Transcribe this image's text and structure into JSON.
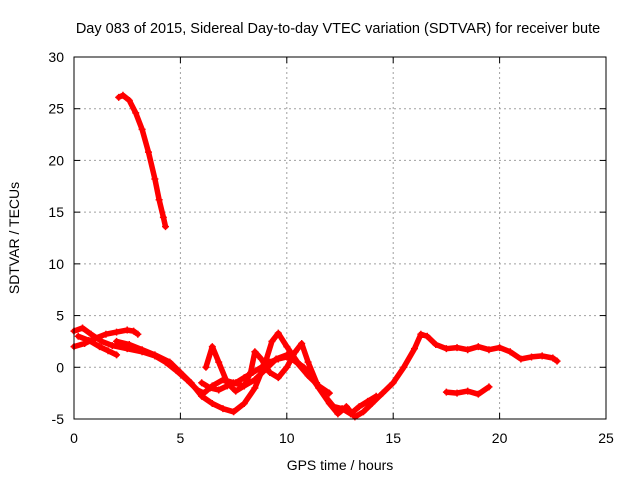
{
  "chart_data": {
    "type": "scatter",
    "title": "Day 083 of 2015, Sidereal Day-to-day VTEC variation (SDTVAR) for receiver bute",
    "xlabel": "GPS time / hours",
    "ylabel": "SDTVAR / TECUs",
    "xlim": [
      0,
      25
    ],
    "ylim": [
      -5,
      30
    ],
    "xticks": [
      "0",
      "5",
      "10",
      "15",
      "20",
      "25"
    ],
    "yticks": [
      "-5",
      "0",
      "5",
      "10",
      "15",
      "20",
      "25",
      "30"
    ],
    "grid": true,
    "series": [
      {
        "name": "satellite-track-high",
        "color": "#ff0000",
        "points": [
          [
            2.1,
            26.1
          ],
          [
            2.3,
            26.3
          ],
          [
            2.6,
            25.8
          ],
          [
            2.9,
            24.6
          ],
          [
            3.2,
            23.0
          ],
          [
            3.5,
            20.8
          ],
          [
            3.8,
            18.2
          ],
          [
            4.0,
            16.2
          ],
          [
            4.2,
            14.5
          ],
          [
            4.3,
            13.6
          ]
        ]
      },
      {
        "name": "satellite-track-a",
        "color": "#ff0000",
        "points": [
          [
            0.0,
            3.5
          ],
          [
            0.4,
            3.8
          ],
          [
            0.8,
            3.2
          ],
          [
            1.3,
            2.5
          ],
          [
            1.8,
            2.1
          ],
          [
            2.5,
            1.8
          ],
          [
            3.2,
            1.5
          ],
          [
            3.8,
            1.1
          ],
          [
            4.3,
            0.5
          ],
          [
            4.8,
            -0.3
          ],
          [
            5.3,
            -1.2
          ],
          [
            5.8,
            -2.2
          ],
          [
            6.1,
            -2.5
          ],
          [
            6.5,
            -1.8
          ],
          [
            7.0,
            -1.2
          ],
          [
            7.5,
            -1.5
          ],
          [
            8.0,
            -1.8
          ],
          [
            8.5,
            -1.2
          ],
          [
            9.0,
            -0.2
          ],
          [
            9.5,
            0.8
          ],
          [
            10.0,
            1.2
          ],
          [
            10.5,
            0.4
          ],
          [
            11.0,
            -0.8
          ],
          [
            11.5,
            -1.8
          ],
          [
            12.0,
            -2.5
          ]
        ]
      },
      {
        "name": "satellite-track-b",
        "color": "#ff0000",
        "points": [
          [
            0.0,
            2.0
          ],
          [
            0.5,
            2.3
          ],
          [
            1.0,
            2.8
          ],
          [
            1.5,
            3.2
          ],
          [
            2.0,
            3.4
          ],
          [
            2.5,
            3.6
          ],
          [
            2.8,
            3.5
          ],
          [
            3.0,
            3.2
          ]
        ]
      },
      {
        "name": "satellite-track-c",
        "color": "#ff0000",
        "points": [
          [
            0.2,
            3.0
          ],
          [
            0.7,
            2.6
          ],
          [
            1.2,
            2.0
          ],
          [
            1.6,
            1.6
          ],
          [
            2.0,
            1.2
          ]
        ]
      },
      {
        "name": "satellite-track-d",
        "color": "#ff0000",
        "points": [
          [
            2.0,
            2.5
          ],
          [
            2.6,
            2.2
          ],
          [
            3.2,
            1.7
          ],
          [
            3.8,
            1.2
          ],
          [
            4.5,
            0.5
          ],
          [
            5.0,
            -0.5
          ],
          [
            5.5,
            -1.5
          ],
          [
            6.0,
            -2.8
          ],
          [
            6.5,
            -3.5
          ],
          [
            7.0,
            -4.0
          ],
          [
            7.5,
            -4.3
          ],
          [
            8.0,
            -3.5
          ],
          [
            8.5,
            -2.0
          ],
          [
            9.0,
            0.5
          ],
          [
            9.3,
            2.5
          ],
          [
            9.6,
            3.3
          ],
          [
            10.0,
            2.0
          ],
          [
            10.5,
            0.5
          ],
          [
            11.0,
            -0.5
          ],
          [
            11.5,
            -2.0
          ],
          [
            12.0,
            -3.5
          ],
          [
            12.4,
            -4.5
          ],
          [
            12.8,
            -3.8
          ],
          [
            13.2,
            -4.8
          ],
          [
            13.6,
            -4.3
          ],
          [
            14.0,
            -3.5
          ],
          [
            14.5,
            -2.5
          ],
          [
            15.0,
            -1.5
          ],
          [
            15.5,
            0.0
          ],
          [
            16.0,
            1.8
          ],
          [
            16.3,
            3.2
          ],
          [
            16.6,
            3.0
          ],
          [
            17.0,
            2.2
          ],
          [
            17.5,
            1.8
          ],
          [
            18.0,
            1.9
          ],
          [
            18.5,
            1.7
          ],
          [
            19.0,
            2.0
          ],
          [
            19.5,
            1.7
          ],
          [
            20.0,
            1.9
          ],
          [
            20.5,
            1.5
          ],
          [
            21.0,
            0.8
          ],
          [
            21.5,
            1.0
          ],
          [
            22.0,
            1.1
          ],
          [
            22.5,
            0.9
          ],
          [
            22.7,
            0.6
          ]
        ]
      },
      {
        "name": "satellite-track-e",
        "color": "#ff0000",
        "points": [
          [
            6.2,
            0.0
          ],
          [
            6.5,
            2.0
          ],
          [
            6.8,
            0.5
          ],
          [
            7.2,
            -1.5
          ],
          [
            7.6,
            -2.3
          ],
          [
            8.0,
            -1.8
          ],
          [
            8.3,
            -0.5
          ],
          [
            8.5,
            1.5
          ],
          [
            8.8,
            0.8
          ],
          [
            9.2,
            -0.5
          ],
          [
            9.6,
            -1.0
          ],
          [
            10.0,
            0.0
          ],
          [
            10.4,
            1.5
          ],
          [
            10.7,
            2.3
          ],
          [
            11.0,
            0.5
          ],
          [
            11.4,
            -1.5
          ],
          [
            11.8,
            -2.8
          ],
          [
            12.2,
            -3.8
          ],
          [
            12.6,
            -4.0
          ],
          [
            13.0,
            -4.5
          ],
          [
            13.4,
            -3.8
          ],
          [
            13.8,
            -3.3
          ],
          [
            14.2,
            -2.8
          ]
        ]
      },
      {
        "name": "satellite-track-f",
        "color": "#ff0000",
        "points": [
          [
            6.0,
            -1.5
          ],
          [
            6.4,
            -2.0
          ],
          [
            6.8,
            -2.2
          ],
          [
            7.2,
            -1.8
          ],
          [
            7.6,
            -1.5
          ],
          [
            8.0,
            -1.0
          ],
          [
            8.4,
            -0.5
          ],
          [
            8.8,
            0.0
          ],
          [
            9.2,
            0.5
          ],
          [
            9.6,
            0.8
          ],
          [
            10.0,
            1.0
          ],
          [
            10.4,
            0.6
          ],
          [
            10.8,
            0.0
          ],
          [
            11.2,
            -0.8
          ]
        ]
      },
      {
        "name": "satellite-track-g",
        "color": "#ff0000",
        "points": [
          [
            17.5,
            -2.4
          ],
          [
            18.0,
            -2.5
          ],
          [
            18.5,
            -2.3
          ],
          [
            19.0,
            -2.6
          ],
          [
            19.5,
            -1.9
          ]
        ]
      }
    ]
  }
}
